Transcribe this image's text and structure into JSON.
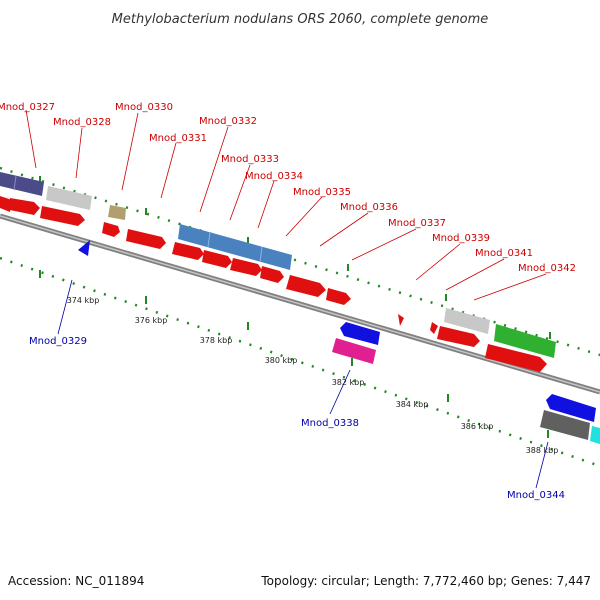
{
  "title": "Methylobacterium nodulans ORS 2060, complete genome",
  "accession": "Accession: NC_011894",
  "summary": "Topology: circular; Length: 7,772,460 bp; Genes: 7,447",
  "colors": {
    "forward_label": "#cc0000",
    "reverse_label": "#0000aa",
    "backbone": "#808080",
    "tick": "#228822"
  },
  "scale_labels": [
    "374 kbp",
    "376 kbp",
    "378 kbp",
    "380 kbp",
    "382 kbp",
    "384 kbp",
    "386 kbp",
    "388 kbp"
  ],
  "forward_labels": [
    "Mnod_0327",
    "Mnod_0328",
    "Mnod_0330",
    "Mnod_0331",
    "Mnod_0332",
    "Mnod_0333",
    "Mnod_0334",
    "Mnod_0335",
    "Mnod_0336",
    "Mnod_0337",
    "Mnod_0339",
    "Mnod_0341",
    "Mnod_0342"
  ],
  "reverse_labels": [
    "Mnod_0329",
    "Mnod_0338",
    "Mnod_0344"
  ]
}
